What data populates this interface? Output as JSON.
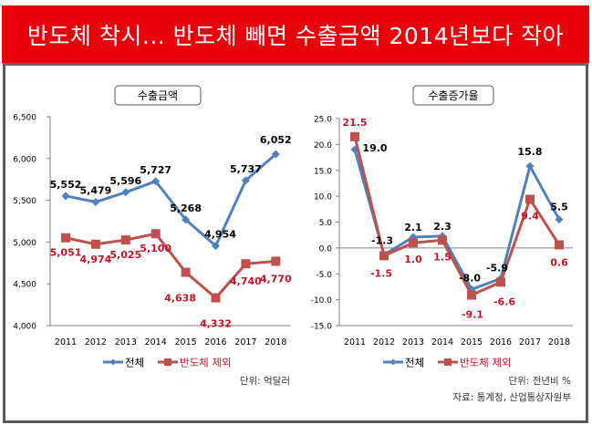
{
  "header": {
    "title": "반도체 착시... 반도체 빼면 수출금액 2014년보다 작아"
  },
  "colors": {
    "banner": "#e8000b",
    "total": "#4f81bd",
    "excl": "#c0504d",
    "excl_label": "#c0152a"
  },
  "chart_data": [
    {
      "type": "line",
      "title": "수출금액",
      "categories": [
        "2011",
        "2012",
        "2013",
        "2014",
        "2015",
        "2016",
        "2017",
        "2018"
      ],
      "ylim": [
        4000,
        6500
      ],
      "yticks": [
        4000,
        4500,
        5000,
        5500,
        6000,
        6500
      ],
      "ytick_labels": [
        "4,000",
        "4,500",
        "5,000",
        "5,500",
        "6,000",
        "6,500"
      ],
      "series": [
        {
          "name": "전체",
          "values": [
            5552,
            5479,
            5596,
            5727,
            5268,
            4954,
            5737,
            6052
          ],
          "labels": [
            "5,552",
            "5,479",
            "5,596",
            "5,727",
            "5,268",
            "4,954",
            "5,737",
            "6,052"
          ],
          "marker": "diamond"
        },
        {
          "name": "반도체 제외",
          "values": [
            5051,
            4974,
            5025,
            5100,
            4638,
            4332,
            4740,
            4770
          ],
          "labels": [
            "5,051",
            "4,974",
            "5,025",
            "5,100",
            "4,638",
            "4,332",
            "4,740",
            "4,770"
          ],
          "marker": "square"
        }
      ],
      "legend": "bottom",
      "unit_note": "단위: 억달러",
      "grid": false
    },
    {
      "type": "line",
      "title": "수출증가율",
      "categories": [
        "2011",
        "2012",
        "2013",
        "2014",
        "2015",
        "2016",
        "2017",
        "2018"
      ],
      "ylim": [
        -15,
        25
      ],
      "yticks": [
        -15,
        -10,
        -5,
        0,
        5,
        10,
        15,
        20,
        25
      ],
      "ytick_labels": [
        "-15.0",
        "-10.0",
        "-5.0",
        "0.0",
        "5.0",
        "10.0",
        "15.0",
        "20.0",
        "25.0"
      ],
      "series": [
        {
          "name": "전체",
          "values": [
            19.0,
            -1.3,
            2.1,
            2.3,
            -8.0,
            -5.9,
            15.8,
            5.5
          ],
          "labels": [
            "19.0",
            "-1.3",
            "2.1",
            "2.3",
            "-8.0",
            "-5.9",
            "15.8",
            "5.5"
          ],
          "marker": "diamond"
        },
        {
          "name": "반도체 제외",
          "values": [
            21.5,
            -1.5,
            1.0,
            1.5,
            -9.1,
            -6.6,
            9.4,
            0.6
          ],
          "labels": [
            "21.5",
            "-1.5",
            "1.0",
            "1.5",
            "-9.1",
            "-6.6",
            "9.4",
            "0.6"
          ],
          "marker": "square"
        }
      ],
      "legend": "bottom",
      "unit_note": "단위: 전년비 %",
      "source_note": "자료: 통계청, 산업통상자원부",
      "grid": false
    }
  ]
}
